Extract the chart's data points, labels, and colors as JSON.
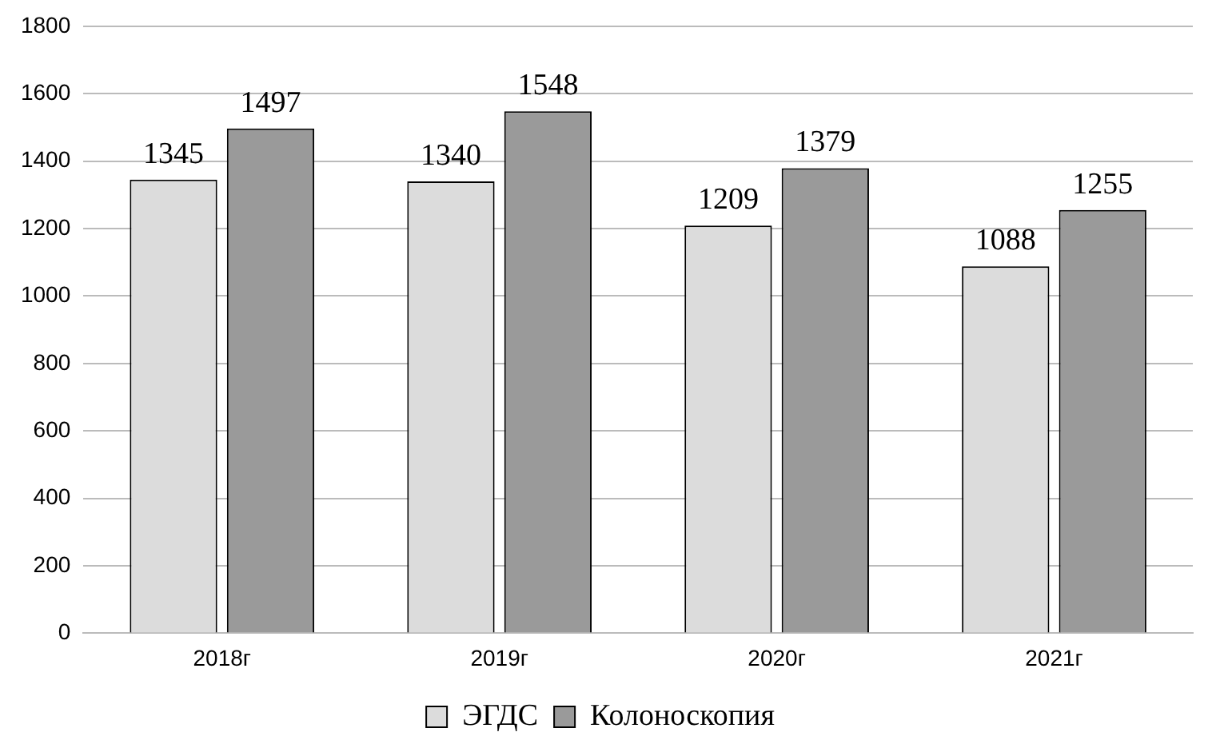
{
  "chart_data": {
    "type": "bar",
    "categories": [
      "2018г",
      "2019г",
      "2020г",
      "2021г"
    ],
    "series": [
      {
        "name": "ЭГДС",
        "color": "#dcdcdc",
        "values": [
          1345,
          1340,
          1209,
          1088
        ]
      },
      {
        "name": "Колоноскопия",
        "color": "#9a9a9a",
        "values": [
          1497,
          1548,
          1379,
          1255
        ]
      }
    ],
    "ylim": [
      0,
      1800
    ],
    "yticks": [
      0,
      200,
      400,
      600,
      800,
      1000,
      1200,
      1400,
      1600,
      1800
    ],
    "grid": "y",
    "legend": "bottom",
    "data_labels": true
  }
}
